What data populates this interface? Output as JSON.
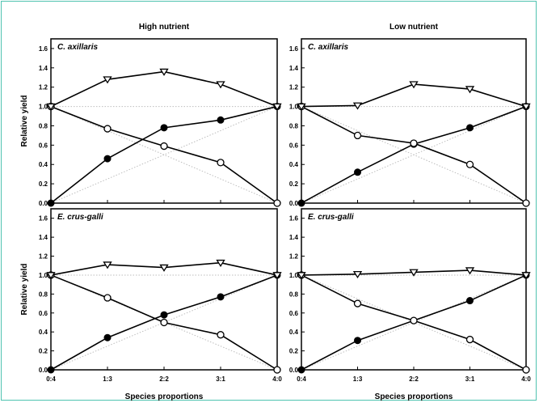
{
  "chart_data": [
    {
      "type": "line",
      "panel": "top-left",
      "title": "High nutrient",
      "panel_label": "C. axillaris",
      "ylabel": "Relative yield",
      "xlabel": "",
      "categories": [
        "0:4",
        "1:3",
        "2:2",
        "3:1",
        "4:0"
      ],
      "ylim": [
        0.0,
        1.7
      ],
      "yticks": [
        "0.0",
        "0.2",
        "0.4",
        "0.6",
        "0.8",
        "1.0",
        "1.2",
        "1.4",
        "1.6"
      ],
      "series": [
        {
          "marker": "filled-circle",
          "values": [
            0.0,
            0.46,
            0.78,
            0.86,
            1.0
          ]
        },
        {
          "marker": "open-circle",
          "values": [
            1.0,
            0.77,
            0.59,
            0.42,
            0.0
          ]
        },
        {
          "marker": "open-triangle-down",
          "values": [
            1.0,
            1.28,
            1.36,
            1.23,
            1.0
          ]
        }
      ],
      "reference_lines": true
    },
    {
      "type": "line",
      "panel": "top-right",
      "title": "Low nutrient",
      "panel_label": "C. axillaris",
      "ylabel": "",
      "xlabel": "",
      "categories": [
        "0:4",
        "1:3",
        "2:2",
        "3:1",
        "4:0"
      ],
      "ylim": [
        0.0,
        1.7
      ],
      "yticks": [
        "0.0",
        "0.2",
        "0.4",
        "0.6",
        "0.8",
        "1.0",
        "1.2",
        "1.4",
        "1.6"
      ],
      "series": [
        {
          "marker": "filled-circle",
          "values": [
            0.0,
            0.32,
            0.61,
            0.78,
            1.0
          ]
        },
        {
          "marker": "open-circle",
          "values": [
            1.0,
            0.7,
            0.62,
            0.4,
            0.0
          ]
        },
        {
          "marker": "open-triangle-down",
          "values": [
            1.0,
            1.01,
            1.23,
            1.18,
            1.0
          ]
        }
      ],
      "reference_lines": true
    },
    {
      "type": "line",
      "panel": "bottom-left",
      "title": "",
      "panel_label": "E. crus-galli",
      "ylabel": "Relative yield",
      "xlabel": "Species proportions",
      "categories": [
        "0:4",
        "1:3",
        "2:2",
        "3:1",
        "4:0"
      ],
      "ylim": [
        0.0,
        1.7
      ],
      "yticks": [
        "0.0",
        "0.2",
        "0.4",
        "0.6",
        "0.8",
        "1.0",
        "1.2",
        "1.4",
        "1.6"
      ],
      "series": [
        {
          "marker": "filled-circle",
          "values": [
            0.0,
            0.34,
            0.58,
            0.77,
            1.0
          ]
        },
        {
          "marker": "open-circle",
          "values": [
            1.0,
            0.76,
            0.5,
            0.37,
            0.0
          ]
        },
        {
          "marker": "open-triangle-down",
          "values": [
            1.0,
            1.11,
            1.08,
            1.13,
            1.0
          ]
        }
      ],
      "reference_lines": true
    },
    {
      "type": "line",
      "panel": "bottom-right",
      "title": "",
      "panel_label": "E. crus-galli",
      "ylabel": "",
      "xlabel": "Species proportions",
      "categories": [
        "0:4",
        "1:3",
        "2:2",
        "3:1",
        "4:0"
      ],
      "ylim": [
        0.0,
        1.7
      ],
      "yticks": [
        "0.0",
        "0.2",
        "0.4",
        "0.6",
        "0.8",
        "1.0",
        "1.2",
        "1.4",
        "1.6"
      ],
      "series": [
        {
          "marker": "filled-circle",
          "values": [
            0.0,
            0.31,
            0.52,
            0.73,
            1.0
          ]
        },
        {
          "marker": "open-circle",
          "values": [
            1.0,
            0.7,
            0.52,
            0.32,
            0.0
          ]
        },
        {
          "marker": "open-triangle-down",
          "values": [
            1.0,
            1.01,
            1.03,
            1.05,
            1.0
          ]
        }
      ],
      "reference_lines": true
    }
  ],
  "colors": {
    "frame": "#4fc3b0",
    "line": "#000000",
    "reference": "#bdbdbd"
  }
}
